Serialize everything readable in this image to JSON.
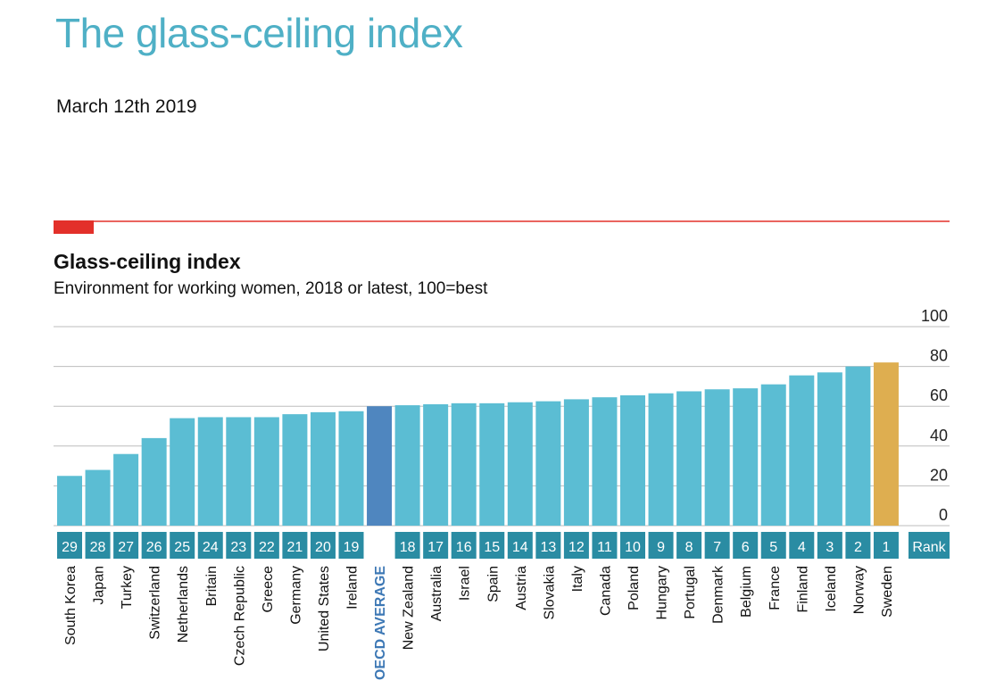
{
  "page": {
    "headline": "The glass-ceiling index",
    "date": "March 12th 2019"
  },
  "colors": {
    "bar": "#5bbdd3",
    "average": "#4f86bf",
    "highlight": "#deae50",
    "rank_bg": "#2a8ca3",
    "accent_red": "#e3302a",
    "grid": "#bdbdbd",
    "headline": "#4fb0c6",
    "average_label": "#3d78b5"
  },
  "chart_data": {
    "type": "bar",
    "title": "Glass-ceiling index",
    "subtitle": "Environment for working women, 2018 or latest, 100=best",
    "ylim": [
      0,
      100
    ],
    "yticks": [
      0,
      20,
      40,
      60,
      80,
      100
    ],
    "rank_header": "Rank",
    "categories": [
      "South Korea",
      "Japan",
      "Turkey",
      "Switzerland",
      "Netherlands",
      "Britain",
      "Czech Republic",
      "Greece",
      "Germany",
      "United States",
      "Ireland",
      "OECD AVERAGE",
      "New Zealand",
      "Australia",
      "Israel",
      "Spain",
      "Austria",
      "Slovakia",
      "Italy",
      "Canada",
      "Poland",
      "Hungary",
      "Portugal",
      "Denmark",
      "Belgium",
      "France",
      "Finland",
      "Iceland",
      "Norway",
      "Sweden"
    ],
    "values": [
      25,
      28,
      36,
      44,
      54,
      54.5,
      54.5,
      54.5,
      56,
      57,
      57.5,
      60,
      60.5,
      61,
      61.5,
      61.5,
      62,
      62.5,
      63.5,
      64.5,
      65.5,
      66.5,
      67.5,
      68.5,
      69,
      71,
      75.5,
      77,
      80,
      82
    ],
    "ranks": [
      "29",
      "28",
      "27",
      "26",
      "25",
      "24",
      "23",
      "22",
      "21",
      "20",
      "19",
      "",
      "18",
      "17",
      "16",
      "15",
      "14",
      "13",
      "12",
      "11",
      "10",
      "9",
      "8",
      "7",
      "6",
      "5",
      "4",
      "3",
      "2",
      "1"
    ],
    "average_index": 11,
    "highlight_index": 29
  }
}
